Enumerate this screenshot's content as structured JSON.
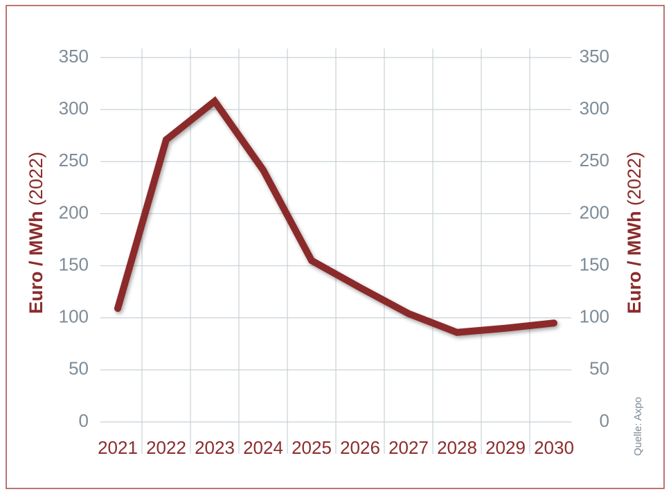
{
  "chart_data": {
    "type": "line",
    "ylabel": {
      "main": "Euro / MWh",
      "unit": "(2022)"
    },
    "y2label": {
      "main": "Euro / MWh",
      "unit": "(2022)"
    },
    "source": "Quelle: Axpo",
    "categories": [
      "2021",
      "2022",
      "2023",
      "2024",
      "2025",
      "2026",
      "2027",
      "2028",
      "2029",
      "2030"
    ],
    "series": [
      {
        "color": "#8b2c2c",
        "values": [
          109,
          271,
          308,
          242,
          155,
          129,
          104,
          86,
          90,
          95
        ]
      }
    ],
    "ylim": [
      0,
      350
    ],
    "yticks": [
      0,
      50,
      100,
      150,
      200,
      250,
      300,
      350
    ],
    "y2lim": [
      0,
      350
    ],
    "y2ticks": [
      0,
      50,
      100,
      150,
      200,
      250,
      300,
      350
    ],
    "grid": true
  }
}
